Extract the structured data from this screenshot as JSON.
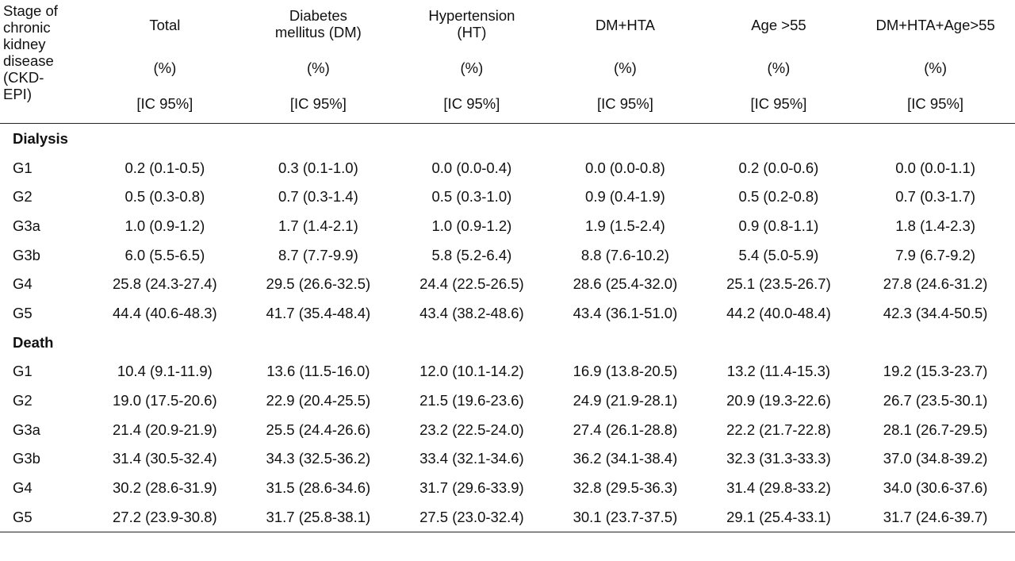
{
  "header": {
    "stub_lines": [
      "Stage of",
      "chronic",
      "kidney",
      "disease",
      "(CKD-",
      "EPI)"
    ],
    "columns": [
      {
        "name_lines": [
          "Total"
        ],
        "unit": "(%)",
        "ci": "[IC 95%]"
      },
      {
        "name_lines": [
          "Diabetes",
          "mellitus (DM)"
        ],
        "unit": "(%)",
        "ci": "[IC 95%]"
      },
      {
        "name_lines": [
          "Hypertension",
          "(HT)"
        ],
        "unit": "(%)",
        "ci": "[IC 95%]"
      },
      {
        "name_lines": [
          "DM+HTA"
        ],
        "unit": "(%)",
        "ci": "[IC 95%]"
      },
      {
        "name_lines": [
          "Age >55"
        ],
        "unit": "(%)",
        "ci": "[IC 95%]"
      },
      {
        "name_lines": [
          "DM+HTA+Age>55"
        ],
        "unit": "(%)",
        "ci": "[IC 95%]"
      }
    ]
  },
  "sections": [
    {
      "title": "Dialysis",
      "rows": [
        {
          "stage": "G1",
          "values": [
            "0.2 (0.1-0.5)",
            "0.3 (0.1-1.0)",
            "0.0 (0.0-0.4)",
            "0.0 (0.0-0.8)",
            "0.2 (0.0-0.6)",
            "0.0 (0.0-1.1)"
          ]
        },
        {
          "stage": "G2",
          "values": [
            "0.5 (0.3-0.8)",
            "0.7 (0.3-1.4)",
            "0.5 (0.3-1.0)",
            "0.9 (0.4-1.9)",
            "0.5 (0.2-0.8)",
            "0.7 (0.3-1.7)"
          ]
        },
        {
          "stage": "G3a",
          "values": [
            "1.0 (0.9-1.2)",
            "1.7 (1.4-2.1)",
            "1.0 (0.9-1.2)",
            "1.9 (1.5-2.4)",
            "0.9 (0.8-1.1)",
            "1.8 (1.4-2.3)"
          ]
        },
        {
          "stage": "G3b",
          "values": [
            "6.0 (5.5-6.5)",
            "8.7 (7.7-9.9)",
            "5.8 (5.2-6.4)",
            "8.8 (7.6-10.2)",
            "5.4 (5.0-5.9)",
            "7.9 (6.7-9.2)"
          ]
        },
        {
          "stage": "G4",
          "values": [
            "25.8 (24.3-27.4)",
            "29.5 (26.6-32.5)",
            "24.4 (22.5-26.5)",
            "28.6 (25.4-32.0)",
            "25.1 (23.5-26.7)",
            "27.8 (24.6-31.2)"
          ]
        },
        {
          "stage": "G5",
          "values": [
            "44.4 (40.6-48.3)",
            "41.7 (35.4-48.4)",
            "43.4 (38.2-48.6)",
            "43.4 (36.1-51.0)",
            "44.2 (40.0-48.4)",
            "42.3 (34.4-50.5)"
          ]
        }
      ]
    },
    {
      "title": "Death",
      "rows": [
        {
          "stage": "G1",
          "values": [
            "10.4 (9.1-11.9)",
            "13.6 (11.5-16.0)",
            "12.0 (10.1-14.2)",
            "16.9 (13.8-20.5)",
            "13.2 (11.4-15.3)",
            "19.2 (15.3-23.7)"
          ]
        },
        {
          "stage": "G2",
          "values": [
            "19.0 (17.5-20.6)",
            "22.9 (20.4-25.5)",
            "21.5 (19.6-23.6)",
            "24.9 (21.9-28.1)",
            "20.9 (19.3-22.6)",
            "26.7 (23.5-30.1)"
          ]
        },
        {
          "stage": "G3a",
          "values": [
            "21.4 (20.9-21.9)",
            "25.5 (24.4-26.6)",
            "23.2 (22.5-24.0)",
            "27.4 (26.1-28.8)",
            "22.2 (21.7-22.8)",
            "28.1 (26.7-29.5)"
          ]
        },
        {
          "stage": "G3b",
          "values": [
            "31.4 (30.5-32.4)",
            "34.3 (32.5-36.2)",
            "33.4 (32.1-34.6)",
            "36.2 (34.1-38.4)",
            "32.3 (31.3-33.3)",
            "37.0 (34.8-39.2)"
          ]
        },
        {
          "stage": "G4",
          "values": [
            "30.2 (28.6-31.9)",
            "31.5 (28.6-34.6)",
            "31.7 (29.6-33.9)",
            "32.8 (29.5-36.3)",
            "31.4 (29.8-33.2)",
            "34.0 (30.6-37.6)"
          ]
        },
        {
          "stage": "G5",
          "values": [
            "27.2 (23.9-30.8)",
            "31.7 (25.8-38.1)",
            "27.5 (23.0-32.4)",
            "30.1 (23.7-37.5)",
            "29.1 (25.4-33.1)",
            "31.7 (24.6-39.7)"
          ]
        }
      ]
    }
  ]
}
